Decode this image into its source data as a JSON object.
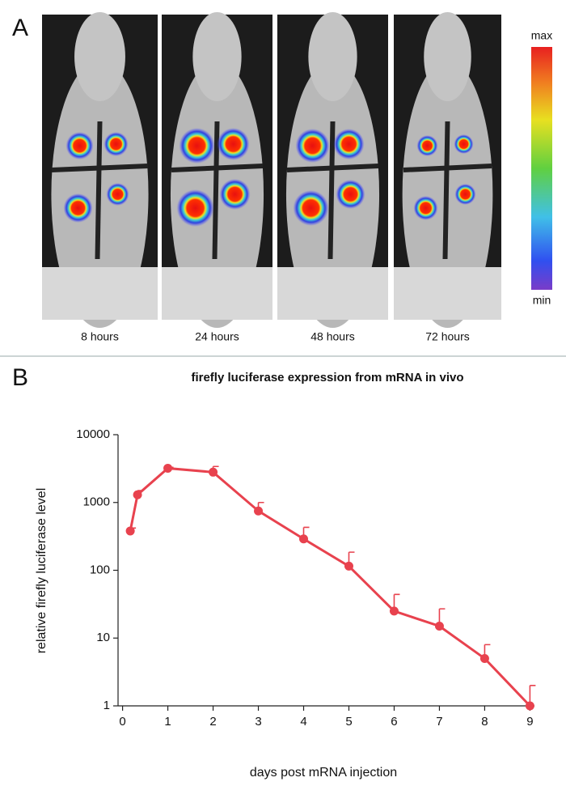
{
  "panel_a": {
    "label": "A",
    "captions": [
      "8 hours",
      "24 hours",
      "48 hours",
      "72 hours"
    ],
    "scale_max": "max",
    "scale_min": "min"
  },
  "panel_b": {
    "label": "B"
  },
  "chart_data": {
    "type": "line",
    "title": "firefly luciferase expression from mRNA in vivo",
    "x_label": "days post mRNA injection",
    "y_label": "relative firefly luciferase level",
    "log_y": true,
    "x": [
      0.17,
      0.33,
      1,
      2,
      3,
      4,
      5,
      6,
      7,
      8,
      9
    ],
    "series": [
      {
        "name": "firefly luciferase",
        "color": "#e8424e",
        "values": [
          380,
          1300,
          3200,
          2800,
          750,
          290,
          115,
          25,
          15,
          5,
          1
        ],
        "errors": [
          40,
          200,
          100,
          600,
          250,
          140,
          70,
          19,
          12,
          3,
          1
        ]
      }
    ],
    "xlim": [
      -0.1,
      9.1
    ],
    "xticks": [
      0,
      1,
      2,
      3,
      4,
      5,
      6,
      7,
      8,
      9
    ],
    "ylim": [
      1,
      10000
    ],
    "yticks": [
      1,
      10,
      100,
      1000,
      10000
    ]
  }
}
